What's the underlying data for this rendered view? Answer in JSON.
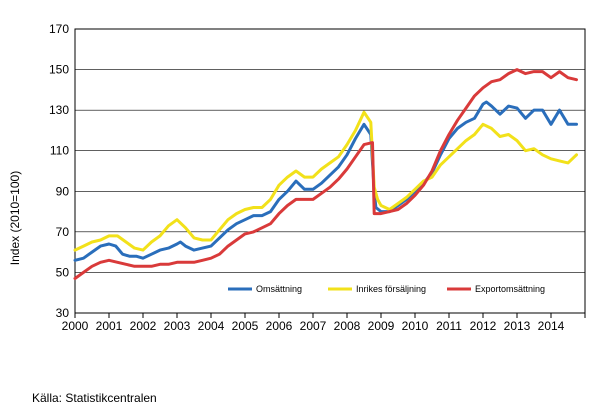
{
  "chart_data": {
    "type": "line",
    "title": "",
    "xlabel": "",
    "ylabel": "Index (2010=100)",
    "ylim": [
      30,
      170
    ],
    "yticks": [
      30,
      50,
      70,
      90,
      110,
      130,
      150,
      170
    ],
    "xlim": [
      2000,
      2015
    ],
    "xticks": [
      "2000",
      "2001",
      "2002",
      "2003",
      "2004",
      "2005",
      "2006",
      "2007",
      "2008",
      "2009",
      "2010",
      "2011",
      "2012",
      "2013",
      "2014"
    ],
    "grid": true,
    "legend_position": "lower-right inside plot",
    "series": [
      {
        "name": "Omsättning",
        "color": "#2a6ebb",
        "points": [
          [
            2000.0,
            56
          ],
          [
            2000.25,
            57
          ],
          [
            2000.5,
            60
          ],
          [
            2000.75,
            63
          ],
          [
            2001.0,
            64
          ],
          [
            2001.2,
            63
          ],
          [
            2001.4,
            59
          ],
          [
            2001.6,
            58
          ],
          [
            2001.8,
            58
          ],
          [
            2002.0,
            57
          ],
          [
            2002.25,
            59
          ],
          [
            2002.5,
            61
          ],
          [
            2002.75,
            62
          ],
          [
            2003.0,
            64
          ],
          [
            2003.1,
            65
          ],
          [
            2003.25,
            63
          ],
          [
            2003.5,
            61
          ],
          [
            2003.75,
            62
          ],
          [
            2004.0,
            63
          ],
          [
            2004.25,
            67
          ],
          [
            2004.5,
            71
          ],
          [
            2004.75,
            74
          ],
          [
            2005.0,
            76
          ],
          [
            2005.25,
            78
          ],
          [
            2005.5,
            78
          ],
          [
            2005.75,
            80
          ],
          [
            2006.0,
            86
          ],
          [
            2006.25,
            90
          ],
          [
            2006.5,
            95
          ],
          [
            2006.75,
            91
          ],
          [
            2007.0,
            91
          ],
          [
            2007.25,
            94
          ],
          [
            2007.5,
            98
          ],
          [
            2007.75,
            102
          ],
          [
            2008.0,
            108
          ],
          [
            2008.25,
            116
          ],
          [
            2008.5,
            123
          ],
          [
            2008.7,
            118
          ],
          [
            2008.8,
            90
          ],
          [
            2008.85,
            82
          ],
          [
            2009.0,
            80
          ],
          [
            2009.25,
            80
          ],
          [
            2009.5,
            83
          ],
          [
            2009.75,
            86
          ],
          [
            2010.0,
            90
          ],
          [
            2010.25,
            94
          ],
          [
            2010.5,
            99
          ],
          [
            2010.75,
            108
          ],
          [
            2011.0,
            116
          ],
          [
            2011.25,
            121
          ],
          [
            2011.5,
            124
          ],
          [
            2011.75,
            126
          ],
          [
            2012.0,
            133
          ],
          [
            2012.1,
            134
          ],
          [
            2012.25,
            132
          ],
          [
            2012.5,
            128
          ],
          [
            2012.75,
            132
          ],
          [
            2013.0,
            131
          ],
          [
            2013.25,
            126
          ],
          [
            2013.5,
            130
          ],
          [
            2013.75,
            130
          ],
          [
            2014.0,
            123
          ],
          [
            2014.25,
            130
          ],
          [
            2014.5,
            123
          ],
          [
            2014.75,
            123
          ]
        ]
      },
      {
        "name": "Inrikes försäljning",
        "color": "#f2e11a",
        "points": [
          [
            2000.0,
            61
          ],
          [
            2000.25,
            63
          ],
          [
            2000.5,
            65
          ],
          [
            2000.75,
            66
          ],
          [
            2001.0,
            68
          ],
          [
            2001.25,
            68
          ],
          [
            2001.5,
            65
          ],
          [
            2001.75,
            62
          ],
          [
            2002.0,
            61
          ],
          [
            2002.25,
            65
          ],
          [
            2002.5,
            68
          ],
          [
            2002.75,
            73
          ],
          [
            2003.0,
            76
          ],
          [
            2003.25,
            72
          ],
          [
            2003.5,
            67
          ],
          [
            2003.75,
            66
          ],
          [
            2004.0,
            66
          ],
          [
            2004.25,
            71
          ],
          [
            2004.5,
            76
          ],
          [
            2004.75,
            79
          ],
          [
            2005.0,
            81
          ],
          [
            2005.25,
            82
          ],
          [
            2005.5,
            82
          ],
          [
            2005.75,
            86
          ],
          [
            2006.0,
            93
          ],
          [
            2006.25,
            97
          ],
          [
            2006.5,
            100
          ],
          [
            2006.75,
            97
          ],
          [
            2007.0,
            97
          ],
          [
            2007.25,
            101
          ],
          [
            2007.5,
            104
          ],
          [
            2007.75,
            107
          ],
          [
            2008.0,
            113
          ],
          [
            2008.25,
            120
          ],
          [
            2008.5,
            129
          ],
          [
            2008.7,
            124
          ],
          [
            2008.8,
            92
          ],
          [
            2008.9,
            86
          ],
          [
            2009.0,
            83
          ],
          [
            2009.25,
            81
          ],
          [
            2009.5,
            84
          ],
          [
            2009.75,
            87
          ],
          [
            2010.0,
            91
          ],
          [
            2010.25,
            95
          ],
          [
            2010.5,
            97
          ],
          [
            2010.75,
            103
          ],
          [
            2011.0,
            107
          ],
          [
            2011.25,
            111
          ],
          [
            2011.5,
            115
          ],
          [
            2011.75,
            118
          ],
          [
            2012.0,
            123
          ],
          [
            2012.25,
            121
          ],
          [
            2012.5,
            117
          ],
          [
            2012.75,
            118
          ],
          [
            2013.0,
            115
          ],
          [
            2013.25,
            110
          ],
          [
            2013.5,
            111
          ],
          [
            2013.75,
            108
          ],
          [
            2014.0,
            106
          ],
          [
            2014.25,
            105
          ],
          [
            2014.5,
            104
          ],
          [
            2014.75,
            108
          ]
        ]
      },
      {
        "name": "Exportomsättning",
        "color": "#d93a3a",
        "points": [
          [
            2000.0,
            47
          ],
          [
            2000.25,
            50
          ],
          [
            2000.5,
            53
          ],
          [
            2000.75,
            55
          ],
          [
            2001.0,
            56
          ],
          [
            2001.25,
            55
          ],
          [
            2001.5,
            54
          ],
          [
            2001.75,
            53
          ],
          [
            2002.0,
            53
          ],
          [
            2002.25,
            53
          ],
          [
            2002.5,
            54
          ],
          [
            2002.75,
            54
          ],
          [
            2003.0,
            55
          ],
          [
            2003.25,
            55
          ],
          [
            2003.5,
            55
          ],
          [
            2003.75,
            56
          ],
          [
            2004.0,
            57
          ],
          [
            2004.25,
            59
          ],
          [
            2004.5,
            63
          ],
          [
            2004.75,
            66
          ],
          [
            2005.0,
            69
          ],
          [
            2005.25,
            70
          ],
          [
            2005.5,
            72
          ],
          [
            2005.75,
            74
          ],
          [
            2006.0,
            79
          ],
          [
            2006.25,
            83
          ],
          [
            2006.5,
            86
          ],
          [
            2006.75,
            86
          ],
          [
            2007.0,
            86
          ],
          [
            2007.25,
            89
          ],
          [
            2007.5,
            92
          ],
          [
            2007.75,
            96
          ],
          [
            2008.0,
            101
          ],
          [
            2008.25,
            107
          ],
          [
            2008.5,
            113
          ],
          [
            2008.75,
            114
          ],
          [
            2008.8,
            79
          ],
          [
            2009.0,
            79
          ],
          [
            2009.25,
            80
          ],
          [
            2009.5,
            81
          ],
          [
            2009.75,
            84
          ],
          [
            2010.0,
            88
          ],
          [
            2010.25,
            93
          ],
          [
            2010.5,
            100
          ],
          [
            2010.75,
            110
          ],
          [
            2011.0,
            118
          ],
          [
            2011.25,
            125
          ],
          [
            2011.5,
            131
          ],
          [
            2011.75,
            137
          ],
          [
            2012.0,
            141
          ],
          [
            2012.25,
            144
          ],
          [
            2012.5,
            145
          ],
          [
            2012.75,
            148
          ],
          [
            2013.0,
            150
          ],
          [
            2013.25,
            148
          ],
          [
            2013.5,
            149
          ],
          [
            2013.75,
            149
          ],
          [
            2014.0,
            146
          ],
          [
            2014.25,
            149
          ],
          [
            2014.5,
            146
          ],
          [
            2014.75,
            145
          ]
        ]
      }
    ]
  },
  "source": "Källa: Statistikcentralen"
}
